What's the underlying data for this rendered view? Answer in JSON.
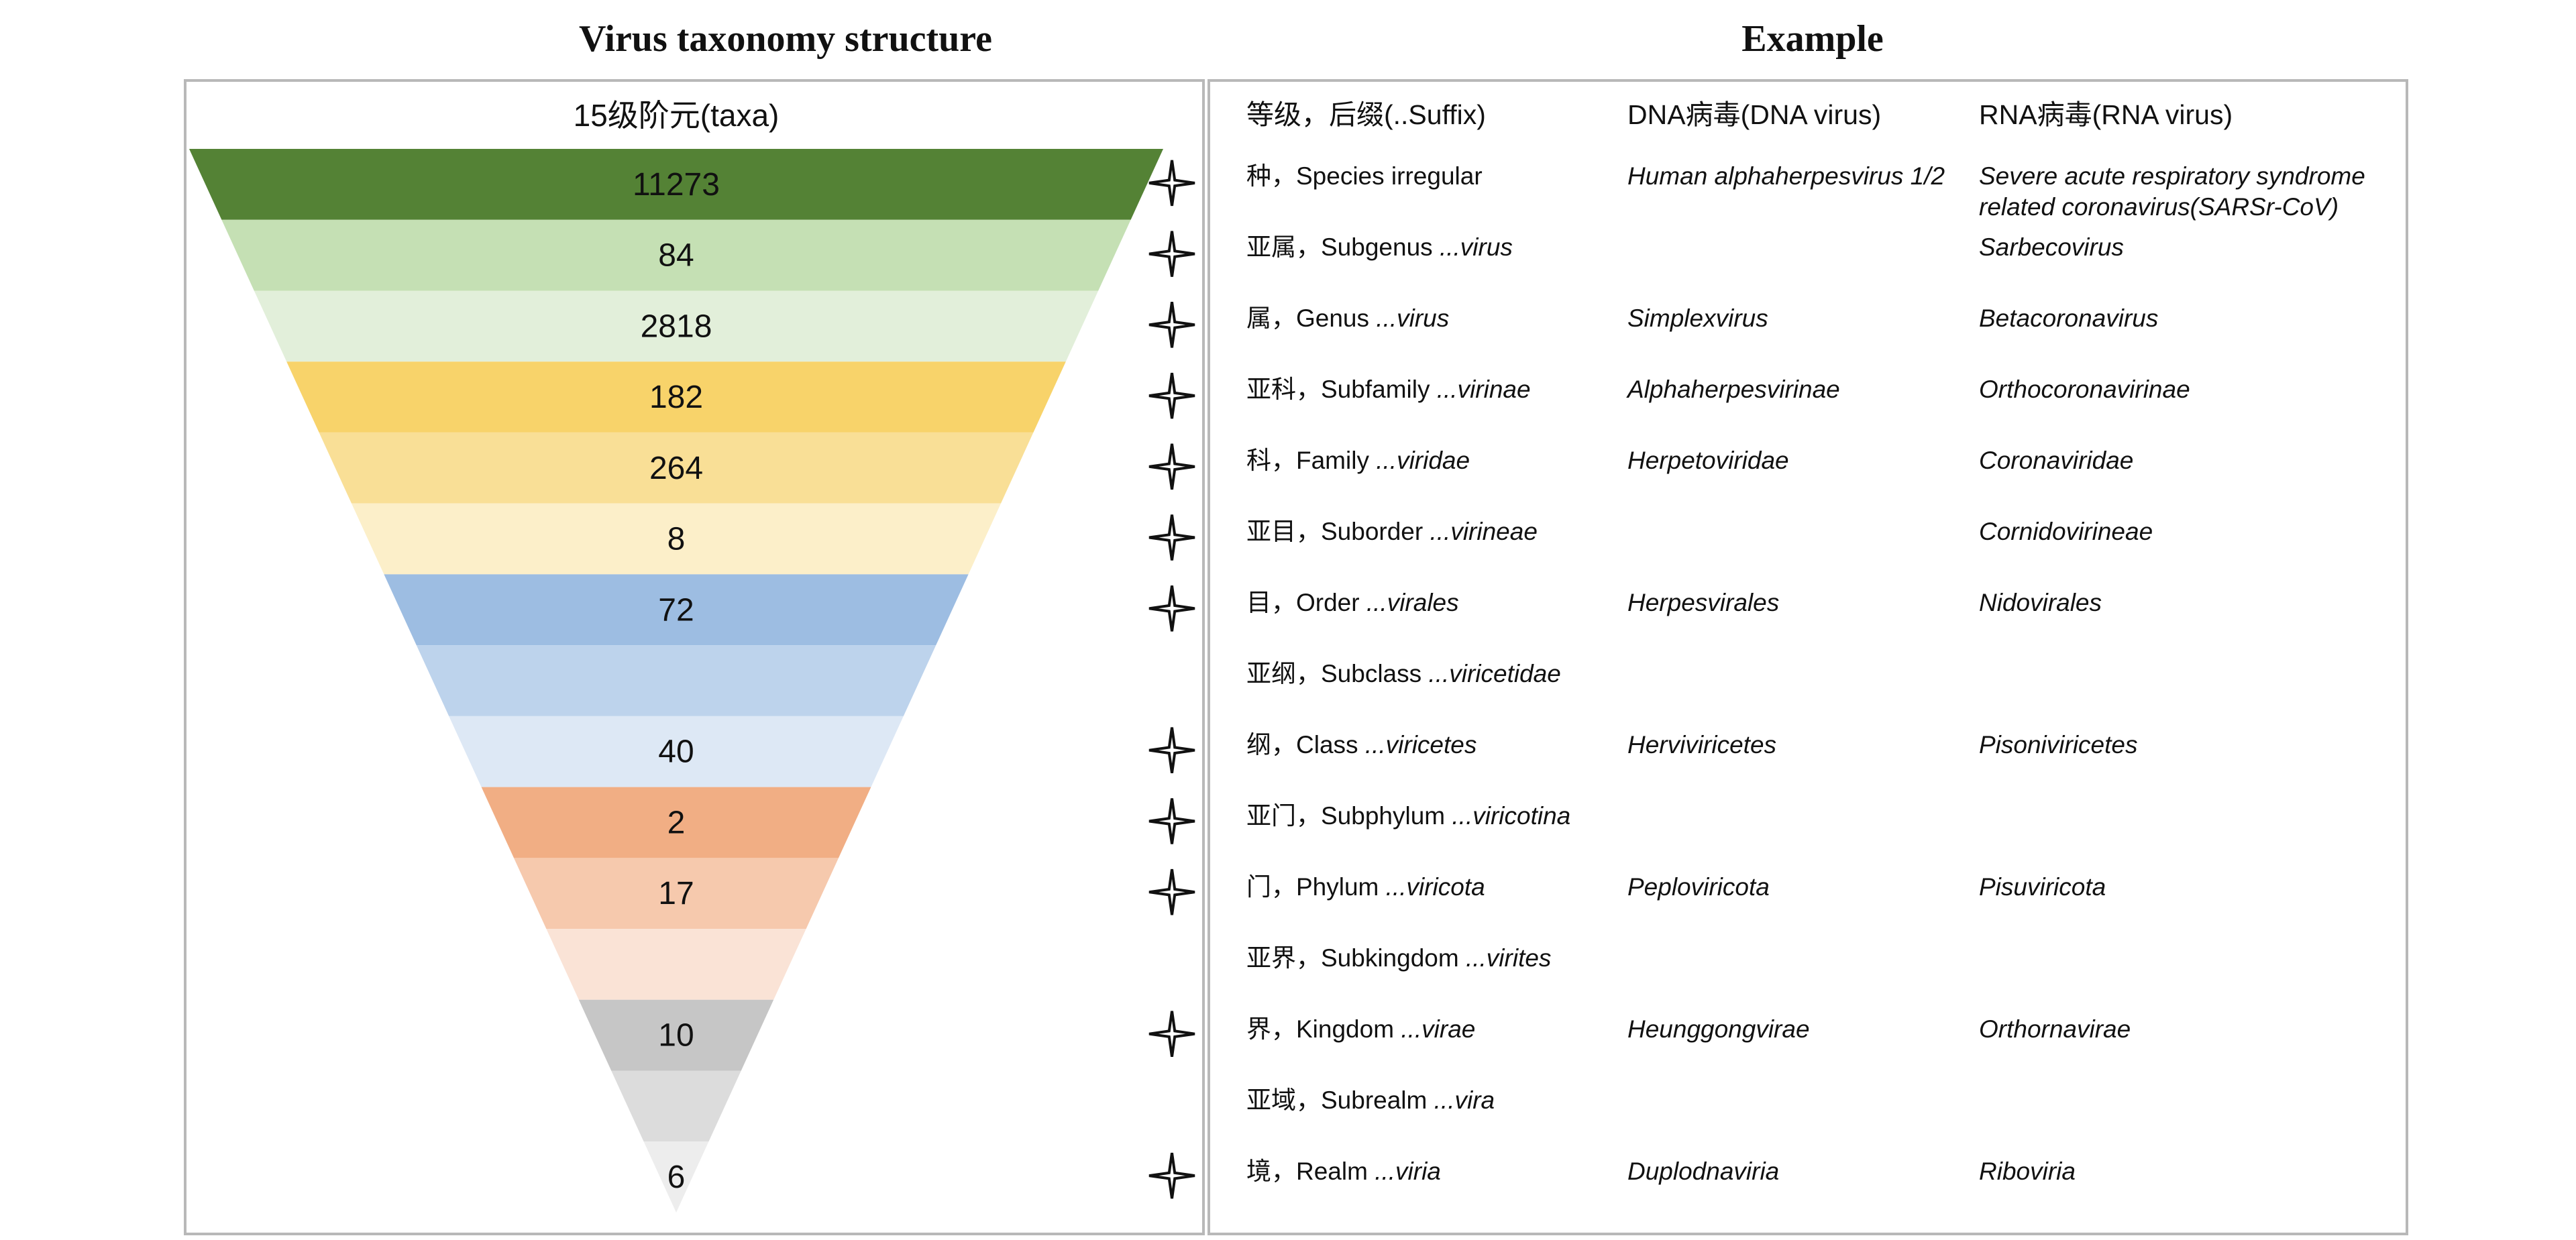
{
  "left_title": "Virus taxonomy structure",
  "right_title": "Example",
  "funnel": {
    "header": "15级阶元(taxa)",
    "bands": [
      {
        "rank": "Species",
        "count": "11273",
        "color": "#548235",
        "star": true
      },
      {
        "rank": "Subgenus",
        "count": "84",
        "color": "#c5e0b4",
        "star": true
      },
      {
        "rank": "Genus",
        "count": "2818",
        "color": "#e2efda",
        "star": true
      },
      {
        "rank": "Subfamily",
        "count": "182",
        "color": "#f8d36a",
        "star": true
      },
      {
        "rank": "Family",
        "count": "264",
        "color": "#f9df96",
        "star": true
      },
      {
        "rank": "Suborder",
        "count": "8",
        "color": "#fcefc9",
        "star": true
      },
      {
        "rank": "Order",
        "count": "72",
        "color": "#9dbde2",
        "star": true
      },
      {
        "rank": "Subclass",
        "count": "",
        "color": "#bdd3ec",
        "star": false
      },
      {
        "rank": "Class",
        "count": "40",
        "color": "#dde8f5",
        "star": true
      },
      {
        "rank": "Subphylum",
        "count": "2",
        "color": "#f1ae84",
        "star": true
      },
      {
        "rank": "Phylum",
        "count": "17",
        "color": "#f6c9ad",
        "star": true
      },
      {
        "rank": "Subkingdom",
        "count": "",
        "color": "#fae3d6",
        "star": false
      },
      {
        "rank": "Kingdom",
        "count": "10",
        "color": "#c6c6c6",
        "star": true
      },
      {
        "rank": "Subrealm",
        "count": "",
        "color": "#dcdcdc",
        "star": false
      },
      {
        "rank": "Realm",
        "count": "6",
        "color": "#ededed",
        "star": true
      }
    ]
  },
  "table": {
    "headers": [
      "等级，后缀(..Suffix)",
      "DNA病毒(DNA virus)",
      "RNA病毒(RNA virus)"
    ],
    "rows": [
      {
        "rank": "种，Species",
        "suffix": "irregular",
        "dna": "Human alphaherpesvirus 1/2",
        "rna": "Severe acute respiratory syndrome related coronavirus(SARSr-CoV)"
      },
      {
        "rank": "亚属，Subgenus",
        "suffix": "...virus",
        "dna": "",
        "rna": "Sarbecovirus"
      },
      {
        "rank": "属，Genus",
        "suffix": "...virus",
        "dna": "Simplexvirus",
        "rna": "Betacoronavirus"
      },
      {
        "rank": "亚科，Subfamily",
        "suffix": "...virinae",
        "dna": "Alphaherpesvirinae",
        "rna": "Orthocoronavirinae"
      },
      {
        "rank": "科，Family",
        "suffix": "...viridae",
        "dna": "Herpetoviridae",
        "rna": "Coronaviridae"
      },
      {
        "rank": "亚目，Suborder",
        "suffix": "...virineae",
        "dna": "",
        "rna": "Cornidovirineae"
      },
      {
        "rank": "目，Order",
        "suffix": "...virales",
        "dna": "Herpesvirales",
        "rna": "Nidovirales"
      },
      {
        "rank": "亚纲，Subclass",
        "suffix": "...viricetidae",
        "dna": "",
        "rna": ""
      },
      {
        "rank": "纲，Class",
        "suffix": "...viricetes",
        "dna": "Herviviricetes",
        "rna": "Pisoniviricetes"
      },
      {
        "rank": "亚门，Subphylum",
        "suffix": "...viricotina",
        "dna": "",
        "rna": ""
      },
      {
        "rank": "门，Phylum",
        "suffix": "...viricota",
        "dna": "Peploviricota",
        "rna": "Pisuviricota"
      },
      {
        "rank": "亚界，Subkingdom",
        "suffix": "...virites",
        "dna": "",
        "rna": ""
      },
      {
        "rank": "界，Kingdom",
        "suffix": "...virae",
        "dna": "Heunggongvirae",
        "rna": "Orthornavirae"
      },
      {
        "rank": "亚域，Subrealm",
        "suffix": "...vira",
        "dna": "",
        "rna": ""
      },
      {
        "rank": "境，Realm",
        "suffix": "...viria",
        "dna": "Duplodnaviria",
        "rna": "Riboviria"
      }
    ]
  }
}
